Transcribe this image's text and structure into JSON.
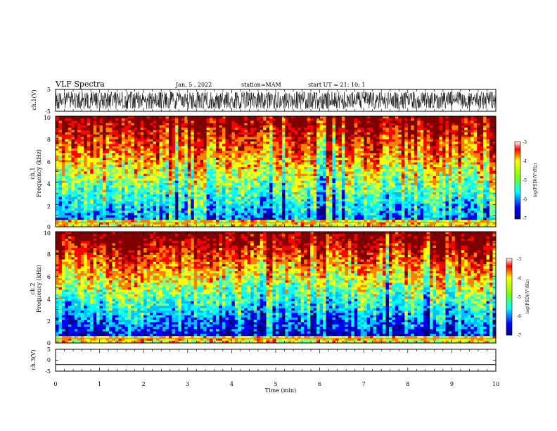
{
  "header": {
    "title": "VLF Spectra",
    "date": "Jan. 5 , 2022",
    "station": "station=MAM",
    "start_ut": "start UT =  21: 10: 1"
  },
  "colors": {
    "trace": "#000000",
    "colormap": [
      "#00007f",
      "#0000ff",
      "#00bfff",
      "#00ffff",
      "#7fff7f",
      "#ffff00",
      "#ff7f00",
      "#ff0000",
      "#7f0000"
    ]
  },
  "chart_data": [
    {
      "id": "ch1-waveform",
      "type": "line",
      "ylabel": "ch.1(V)",
      "ylim": [
        -5,
        5
      ],
      "yticks": [
        "5",
        "-5"
      ],
      "xlim": [
        0,
        10
      ],
      "description_values": {
        "amplitude_range": [
          -4,
          4
        ],
        "trace": "dense noisy signal"
      }
    },
    {
      "id": "ch1-spectrogram",
      "type": "heatmap",
      "ylabel_line1": "ch.1",
      "ylabel_line2": "Frequency (kHz)",
      "ylim": [
        0,
        10
      ],
      "yticks": [
        "0",
        "2",
        "4",
        "6",
        "8",
        "10"
      ],
      "xlim": [
        0,
        10
      ],
      "color_range": [
        -7,
        -3
      ],
      "colorbar_ticks": [
        "-3",
        "-4",
        "-5",
        "-6",
        "-7"
      ],
      "colorbar_label": "log(PSD)(V²/Hz)"
    },
    {
      "id": "ch2-spectrogram",
      "type": "heatmap",
      "ylabel_line1": "ch.2",
      "ylabel_line2": "Frequency (kHz)",
      "ylim": [
        0,
        10
      ],
      "yticks": [
        "0",
        "2",
        "4",
        "6",
        "8",
        "10"
      ],
      "xlim": [
        0,
        10
      ],
      "color_range": [
        -7,
        -3
      ],
      "colorbar_ticks": [
        "-3",
        "-4",
        "-5",
        "-6",
        "-7"
      ],
      "colorbar_label": "log(PSD)(V²/Hz)"
    },
    {
      "id": "ch3-waveform",
      "type": "line",
      "ylabel": "ch.3(V)",
      "ylim": [
        -5,
        5
      ],
      "yticks": [
        "5",
        "0",
        "-5"
      ],
      "xlim": [
        0,
        10
      ],
      "y": -2,
      "xlabel": "Time (min)",
      "xticks": [
        "0",
        "1",
        "2",
        "3",
        "4",
        "5",
        "6",
        "7",
        "8",
        "9",
        "10"
      ]
    }
  ]
}
